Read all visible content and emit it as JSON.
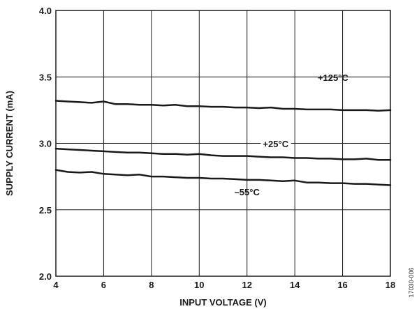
{
  "chart_data": {
    "type": "line",
    "title": "",
    "xlabel": "INPUT VOLTAGE (V)",
    "ylabel": "SUPPLY CURRENT (mA)",
    "xlim": [
      4,
      18
    ],
    "ylim": [
      2.0,
      4.0
    ],
    "x_ticks": [
      4,
      6,
      8,
      10,
      12,
      14,
      16,
      18
    ],
    "x_tick_labels": [
      "4",
      "6",
      "8",
      "10",
      "12",
      "14",
      "16",
      "18"
    ],
    "y_ticks": [
      2.0,
      2.5,
      3.0,
      3.5,
      4.0
    ],
    "y_tick_labels": [
      "2.0",
      "2.5",
      "3.0",
      "3.5",
      "4.0"
    ],
    "grid": true,
    "legend": "none",
    "series": [
      {
        "name": "+125°C",
        "x": [
          4,
          4.5,
          5,
          5.5,
          6,
          6.5,
          7,
          7.5,
          8,
          8.5,
          9,
          9.5,
          10,
          10.5,
          11,
          11.5,
          12,
          12.5,
          13,
          13.5,
          14,
          14.5,
          15,
          15.5,
          16,
          16.5,
          17,
          17.5,
          18
        ],
        "values": [
          3.32,
          3.315,
          3.31,
          3.305,
          3.315,
          3.295,
          3.295,
          3.29,
          3.29,
          3.285,
          3.29,
          3.28,
          3.28,
          3.275,
          3.275,
          3.27,
          3.27,
          3.265,
          3.27,
          3.26,
          3.26,
          3.255,
          3.255,
          3.255,
          3.25,
          3.25,
          3.25,
          3.245,
          3.25
        ]
      },
      {
        "name": "+25°C",
        "x": [
          4,
          4.5,
          5,
          5.5,
          6,
          6.5,
          7,
          7.5,
          8,
          8.5,
          9,
          9.5,
          10,
          10.5,
          11,
          11.5,
          12,
          12.5,
          13,
          13.5,
          14,
          14.5,
          15,
          15.5,
          16,
          16.5,
          17,
          17.5,
          18
        ],
        "values": [
          2.96,
          2.955,
          2.95,
          2.945,
          2.94,
          2.935,
          2.93,
          2.93,
          2.925,
          2.92,
          2.92,
          2.915,
          2.92,
          2.91,
          2.905,
          2.905,
          2.905,
          2.9,
          2.895,
          2.895,
          2.89,
          2.89,
          2.885,
          2.885,
          2.88,
          2.88,
          2.885,
          2.875,
          2.875
        ]
      },
      {
        "name": "–55°C",
        "x": [
          4,
          4.5,
          5,
          5.5,
          6,
          6.5,
          7,
          7.5,
          8,
          8.5,
          9,
          9.5,
          10,
          10.5,
          11,
          11.5,
          12,
          12.5,
          13,
          13.5,
          14,
          14.5,
          15,
          15.5,
          16,
          16.5,
          17,
          17.5,
          18
        ],
        "values": [
          2.8,
          2.785,
          2.78,
          2.785,
          2.77,
          2.765,
          2.76,
          2.765,
          2.75,
          2.75,
          2.745,
          2.74,
          2.74,
          2.735,
          2.735,
          2.73,
          2.725,
          2.725,
          2.72,
          2.715,
          2.72,
          2.705,
          2.705,
          2.7,
          2.7,
          2.695,
          2.695,
          2.69,
          2.685
        ]
      }
    ],
    "annotations": [
      {
        "text": "+125°C",
        "series": 0
      },
      {
        "text": "+25°C",
        "series": 1
      },
      {
        "text": "–55°C",
        "series": 2
      }
    ],
    "figure_id": "17030-006"
  }
}
